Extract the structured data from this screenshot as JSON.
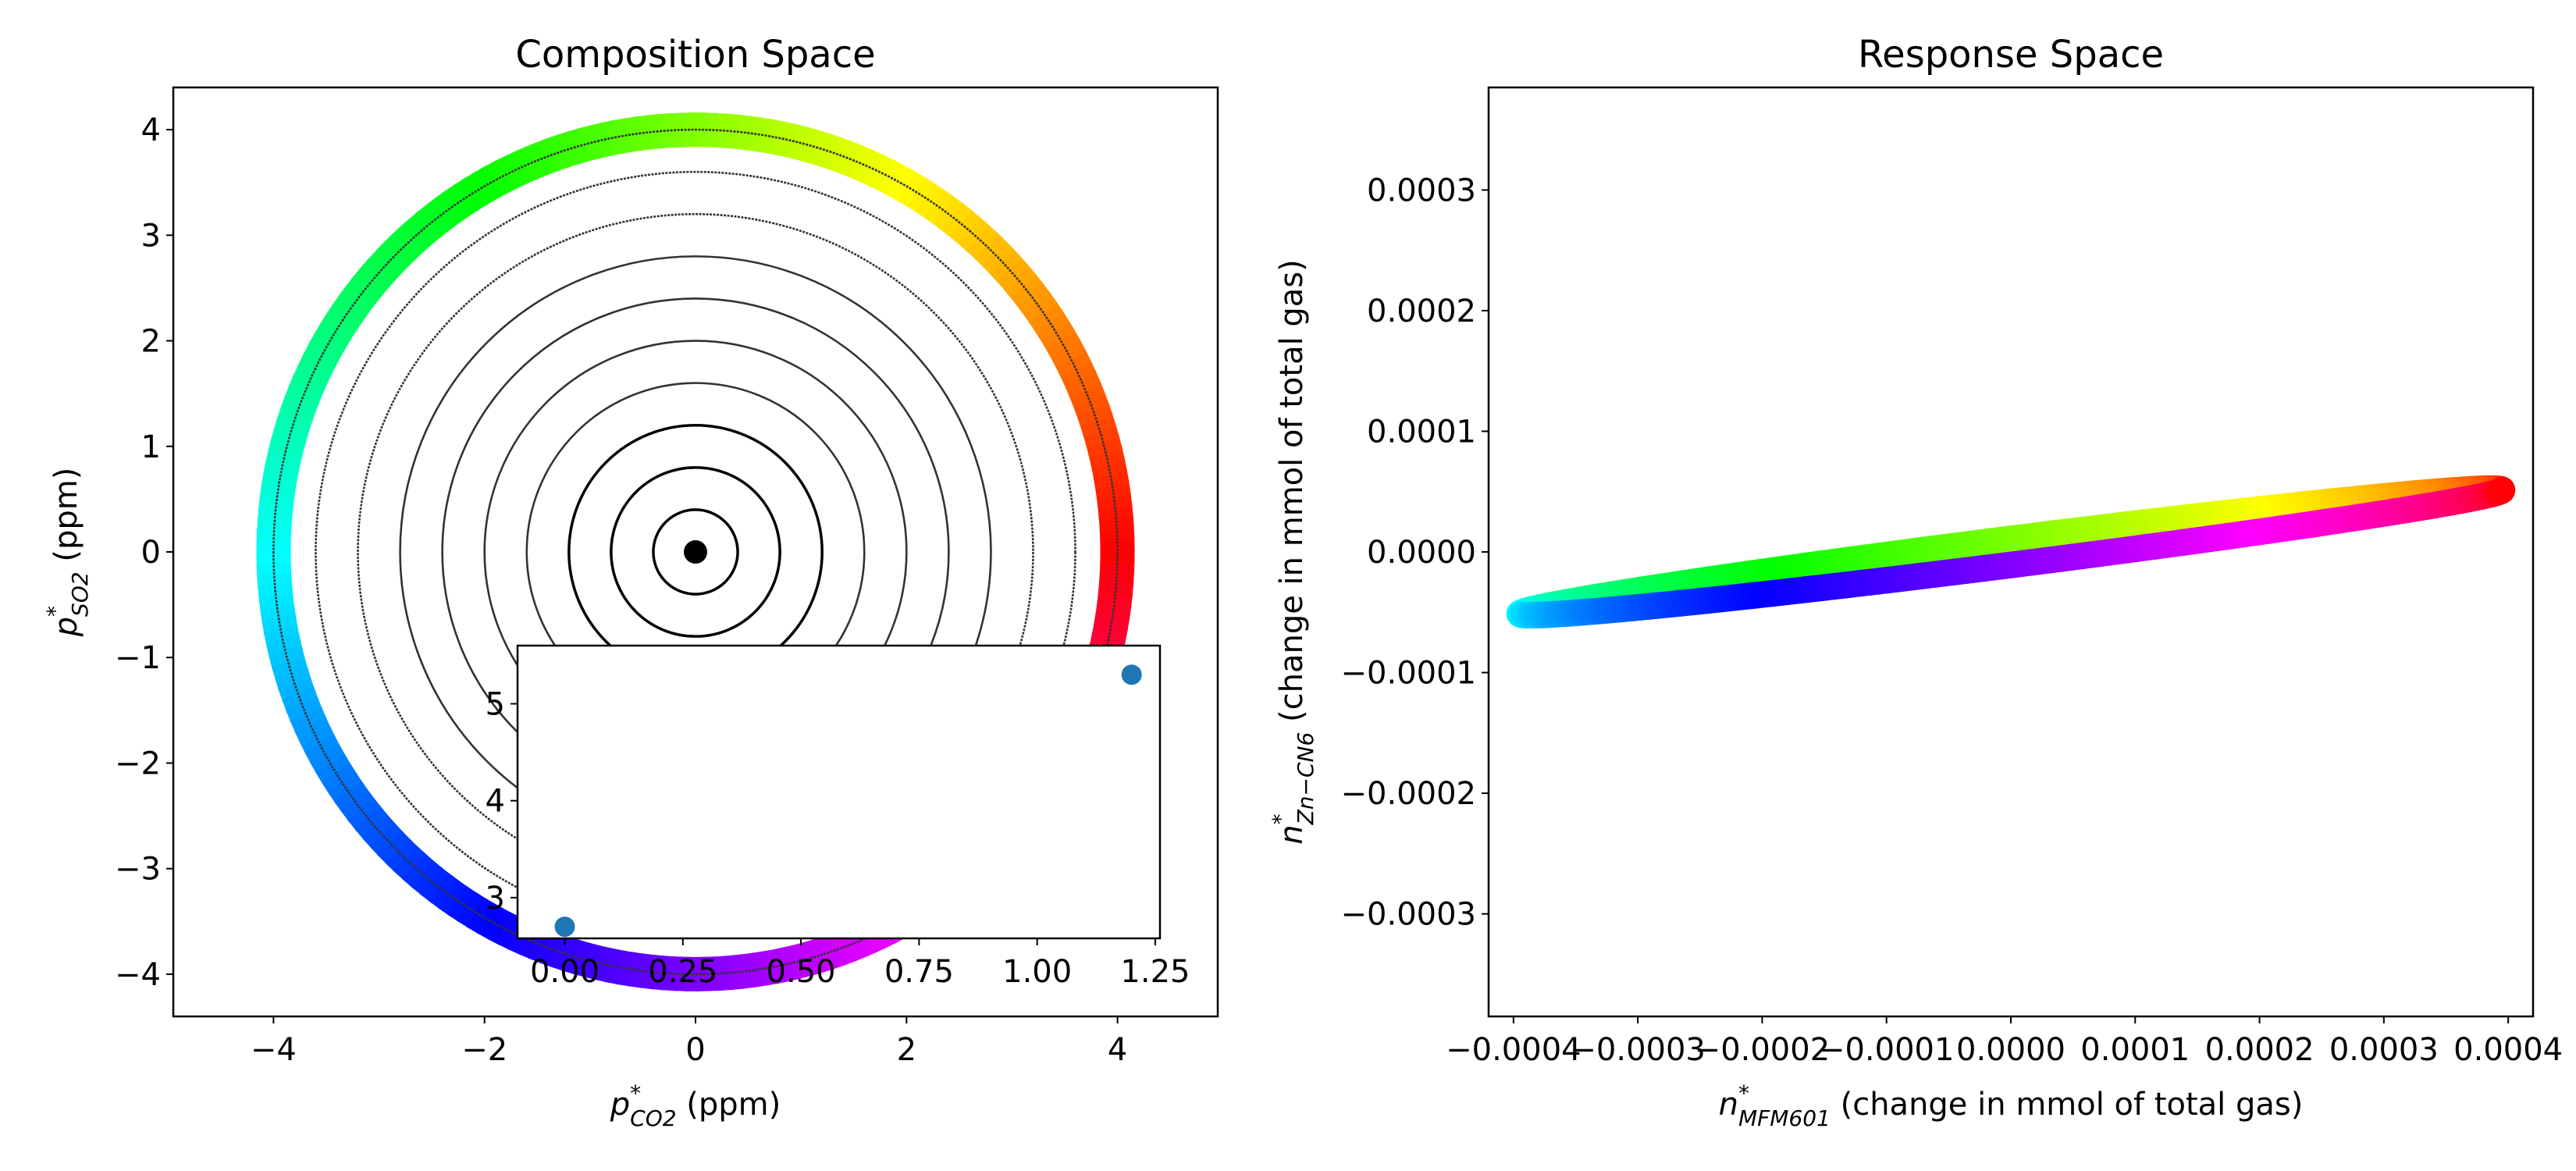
{
  "chart_data": [
    {
      "type": "line",
      "title": "Composition Space",
      "xlabel": {
        "symbol": "p",
        "sup": "*",
        "sub": "CO2",
        "rest": " (ppm)"
      },
      "ylabel": {
        "symbol": "p",
        "sup": "*",
        "sub": "SO2",
        "rest": " (ppm)"
      },
      "xlim": [
        -4.95,
        4.95
      ],
      "ylim": [
        -4.4,
        4.4
      ],
      "xticks": [
        -4,
        -2,
        0,
        2,
        4
      ],
      "yticks": [
        -4,
        -3,
        -2,
        -1,
        0,
        1,
        2,
        3,
        4
      ],
      "xtick_labels": [
        "−4",
        "−2",
        "0",
        "2",
        "4"
      ],
      "ytick_labels": [
        "−4",
        "−3",
        "−2",
        "−1",
        "0",
        "1",
        "2",
        "3",
        "4"
      ],
      "center": [
        0,
        0
      ],
      "contour_radii": [
        0.4,
        0.8,
        1.2,
        1.6,
        2.0,
        2.4,
        2.8,
        3.2,
        3.6,
        4.0
      ],
      "colored_ring_radius": 4.0,
      "colormap": "hsv",
      "grid": false
    },
    {
      "type": "scatter",
      "role": "inset",
      "x": [
        0.0,
        1.2
      ],
      "y": [
        2.7,
        5.3
      ],
      "xlim": [
        -0.1,
        1.26
      ],
      "ylim": [
        2.58,
        5.6
      ],
      "xticks": [
        0.0,
        0.25,
        0.5,
        0.75,
        1.0,
        1.25
      ],
      "yticks": [
        3,
        4,
        5
      ],
      "xtick_labels": [
        "0.00",
        "0.25",
        "0.50",
        "0.75",
        "1.00",
        "1.25"
      ],
      "ytick_labels": [
        "3",
        "4",
        "5"
      ],
      "marker_color": "#1f77b4"
    },
    {
      "type": "line",
      "title": "Response Space",
      "xlabel": {
        "symbol": "n",
        "sup": "*",
        "sub": "MFM601",
        "rest": " (change in mmol of total gas)"
      },
      "ylabel": {
        "symbol": "n",
        "sup": "*",
        "sub": "Zn−CN6",
        "rest": " (change in mmol of total gas)"
      },
      "xlim": [
        -0.00042,
        0.00042
      ],
      "ylim": [
        -0.000385,
        0.000385
      ],
      "xticks": [
        -0.0004,
        -0.0003,
        -0.0002,
        -0.0001,
        0.0,
        0.0001,
        0.0002,
        0.0003,
        0.0004
      ],
      "yticks": [
        -0.0003,
        -0.0002,
        -0.0001,
        0.0,
        0.0001,
        0.0002,
        0.0003
      ],
      "xtick_labels": [
        "−0.0004",
        "−0.0003",
        "−0.0002",
        "−0.0001",
        "0.0000",
        "0.0001",
        "0.0002",
        "0.0003",
        "0.0004"
      ],
      "ytick_labels": [
        "−0.0003",
        "−0.0002",
        "−0.0001",
        "0.0000",
        "0.0001",
        "0.0002",
        "0.0003"
      ],
      "ellipse": {
        "x_amplitude": 0.000395,
        "y_slope": 5.13e-05,
        "y_spread": 1.08e-05
      },
      "colormap": "hsv",
      "grid": false
    }
  ]
}
